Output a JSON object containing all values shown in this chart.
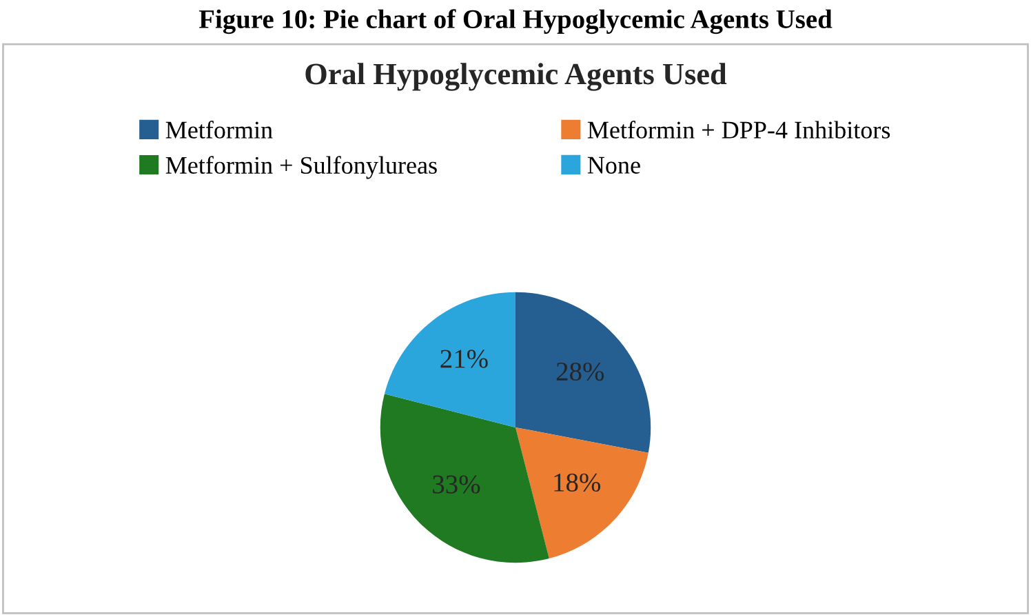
{
  "chart_data": {
    "type": "pie",
    "title": "Oral Hypoglycemic Agents Used",
    "annotations": [
      "Figure 10: Pie chart of Oral Hypoglycemic Agents Used"
    ],
    "categories": [
      "Metformin",
      "Metformin + DPP-4 Inhibitors",
      "Metformin + Sulfonylureas",
      "None"
    ],
    "values": [
      28,
      18,
      33,
      21
    ],
    "value_labels": [
      "28%",
      "18%",
      "33%",
      "21%"
    ],
    "colors": [
      "#255e91",
      "#ed7d31",
      "#1f7a22",
      "#2ba6dc"
    ],
    "legend": "top"
  }
}
